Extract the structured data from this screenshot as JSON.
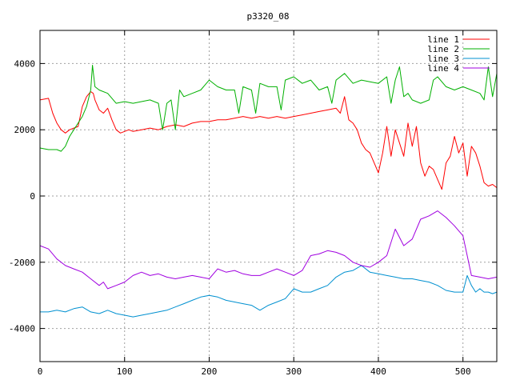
{
  "chart_data": {
    "type": "line",
    "title": "p3320_08",
    "xlabel": "",
    "ylabel": "",
    "xlim": [
      0,
      540
    ],
    "ylim": [
      -5000,
      5000
    ],
    "x_ticks": [
      0,
      100,
      200,
      300,
      400,
      500
    ],
    "y_ticks": [
      -4000,
      -2000,
      0,
      2000,
      4000
    ],
    "grid": true,
    "legend_position": "top-right",
    "series": [
      {
        "name": "line 1",
        "color": "#ff0000",
        "x": [
          0,
          10,
          15,
          20,
          25,
          30,
          35,
          40,
          45,
          50,
          55,
          60,
          63,
          65,
          70,
          75,
          80,
          85,
          90,
          95,
          100,
          105,
          110,
          120,
          130,
          140,
          150,
          160,
          170,
          180,
          190,
          200,
          210,
          220,
          230,
          240,
          250,
          260,
          270,
          280,
          290,
          300,
          310,
          320,
          330,
          340,
          350,
          355,
          360,
          365,
          370,
          375,
          380,
          385,
          390,
          395,
          400,
          405,
          410,
          415,
          420,
          425,
          430,
          435,
          440,
          445,
          450,
          455,
          460,
          465,
          470,
          475,
          480,
          485,
          490,
          495,
          500,
          505,
          510,
          515,
          520,
          525,
          530,
          535,
          540
        ],
        "y": [
          2900,
          2950,
          2500,
          2200,
          2000,
          1900,
          2000,
          2050,
          2100,
          2700,
          3000,
          3150,
          3100,
          2900,
          2600,
          2500,
          2650,
          2300,
          2000,
          1900,
          1950,
          2000,
          1950,
          2000,
          2050,
          2000,
          2100,
          2150,
          2100,
          2200,
          2250,
          2250,
          2300,
          2300,
          2350,
          2400,
          2350,
          2400,
          2350,
          2400,
          2350,
          2400,
          2450,
          2500,
          2550,
          2600,
          2650,
          2500,
          3000,
          2300,
          2200,
          2000,
          1600,
          1400,
          1300,
          1000,
          700,
          1300,
          2100,
          1200,
          2000,
          1600,
          1200,
          2200,
          1500,
          2100,
          1000,
          600,
          900,
          800,
          500,
          200,
          1000,
          1200,
          1800,
          1300,
          1600,
          600,
          1500,
          1300,
          900,
          400,
          300,
          350,
          250
        ]
      },
      {
        "name": "line 2",
        "color": "#00b000",
        "x": [
          0,
          10,
          20,
          25,
          30,
          35,
          40,
          45,
          50,
          55,
          60,
          62,
          65,
          70,
          80,
          90,
          100,
          110,
          120,
          130,
          140,
          145,
          150,
          155,
          160,
          165,
          170,
          180,
          190,
          200,
          210,
          220,
          230,
          235,
          240,
          250,
          255,
          260,
          270,
          280,
          285,
          290,
          300,
          310,
          320,
          330,
          340,
          345,
          350,
          360,
          370,
          380,
          390,
          400,
          410,
          415,
          420,
          425,
          430,
          435,
          440,
          450,
          460,
          465,
          470,
          480,
          490,
          500,
          510,
          520,
          525,
          530,
          535,
          540
        ],
        "y": [
          1450,
          1400,
          1400,
          1350,
          1500,
          1800,
          2000,
          2200,
          2400,
          2700,
          3200,
          3950,
          3300,
          3200,
          3100,
          2800,
          2850,
          2800,
          2850,
          2900,
          2800,
          2000,
          2800,
          2900,
          2000,
          3200,
          3000,
          3100,
          3200,
          3500,
          3300,
          3200,
          3200,
          2500,
          3300,
          3200,
          2500,
          3400,
          3300,
          3300,
          2600,
          3500,
          3600,
          3400,
          3500,
          3200,
          3300,
          2800,
          3500,
          3700,
          3400,
          3500,
          3450,
          3400,
          3600,
          2800,
          3500,
          3900,
          3000,
          3100,
          2900,
          2800,
          2900,
          3500,
          3600,
          3300,
          3200,
          3300,
          3200,
          3100,
          2900,
          3900,
          3000,
          3700
        ]
      },
      {
        "name": "line 3",
        "color": "#0090d0",
        "x": [
          0,
          10,
          20,
          30,
          40,
          50,
          60,
          70,
          80,
          90,
          100,
          110,
          120,
          130,
          140,
          150,
          160,
          170,
          180,
          190,
          200,
          210,
          220,
          230,
          240,
          250,
          260,
          270,
          280,
          290,
          300,
          310,
          320,
          330,
          340,
          350,
          360,
          370,
          380,
          390,
          400,
          410,
          420,
          430,
          440,
          450,
          460,
          470,
          480,
          490,
          500,
          505,
          510,
          515,
          520,
          525,
          530,
          535,
          540
        ],
        "y": [
          -3500,
          -3500,
          -3450,
          -3500,
          -3400,
          -3350,
          -3500,
          -3550,
          -3450,
          -3550,
          -3600,
          -3650,
          -3600,
          -3550,
          -3500,
          -3450,
          -3350,
          -3250,
          -3150,
          -3050,
          -3000,
          -3050,
          -3150,
          -3200,
          -3250,
          -3300,
          -3450,
          -3300,
          -3200,
          -3100,
          -2800,
          -2900,
          -2900,
          -2800,
          -2700,
          -2450,
          -2300,
          -2250,
          -2100,
          -2300,
          -2350,
          -2400,
          -2450,
          -2500,
          -2500,
          -2550,
          -2600,
          -2700,
          -2850,
          -2900,
          -2900,
          -2400,
          -2700,
          -2900,
          -2800,
          -2900,
          -2900,
          -2950,
          -2900
        ]
      },
      {
        "name": "line 4",
        "color": "#a000e0",
        "x": [
          0,
          10,
          20,
          30,
          40,
          50,
          60,
          70,
          75,
          80,
          90,
          100,
          110,
          120,
          130,
          140,
          150,
          160,
          170,
          180,
          190,
          200,
          210,
          220,
          230,
          240,
          250,
          260,
          270,
          280,
          290,
          300,
          310,
          320,
          330,
          340,
          350,
          360,
          370,
          380,
          390,
          400,
          410,
          420,
          430,
          440,
          450,
          460,
          470,
          480,
          490,
          500,
          505,
          510,
          520,
          530,
          540
        ],
        "y": [
          -1500,
          -1600,
          -1900,
          -2100,
          -2200,
          -2300,
          -2500,
          -2700,
          -2600,
          -2800,
          -2700,
          -2600,
          -2400,
          -2300,
          -2400,
          -2350,
          -2450,
          -2500,
          -2450,
          -2400,
          -2450,
          -2500,
          -2200,
          -2300,
          -2250,
          -2350,
          -2400,
          -2400,
          -2300,
          -2200,
          -2300,
          -2400,
          -2250,
          -1800,
          -1750,
          -1650,
          -1700,
          -1800,
          -2000,
          -2100,
          -2150,
          -2000,
          -1800,
          -1000,
          -1500,
          -1300,
          -700,
          -600,
          -450,
          -650,
          -900,
          -1200,
          -1800,
          -2400,
          -2450,
          -2500,
          -2450
        ]
      }
    ]
  }
}
